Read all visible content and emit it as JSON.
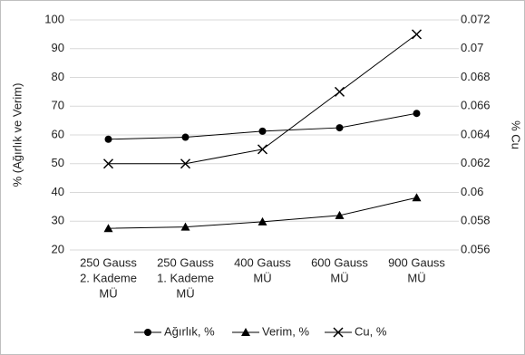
{
  "chart_data": {
    "type": "line",
    "categories": [
      [
        "250 Gauss",
        "2. Kademe",
        "MÜ"
      ],
      [
        "250 Gauss",
        "1. Kademe",
        "MÜ"
      ],
      [
        "400 Gauss",
        "MÜ"
      ],
      [
        "600 Gauss",
        "MÜ"
      ],
      [
        "900 Gauss",
        "MÜ"
      ]
    ],
    "y_label": "% (Ağırlık ve Verim)",
    "y2_label": "% Cu",
    "ylim": [
      20,
      100
    ],
    "yticks": [
      20,
      30,
      40,
      50,
      60,
      70,
      80,
      90,
      100
    ],
    "y2lim": [
      0.056,
      0.072
    ],
    "y2ticks": [
      0.056,
      0.058,
      0.06,
      0.062,
      0.064,
      0.066,
      0.068,
      0.07,
      0.072
    ],
    "grid": true,
    "legend": "bottom",
    "series": [
      {
        "name": "Ağırlık, %",
        "color": "#000000",
        "marker": "circle",
        "values": [
          58.5,
          59.2,
          61.3,
          62.5,
          67.5
        ]
      },
      {
        "name": "Verim, %",
        "color": "#000000",
        "marker": "triangle",
        "values": [
          27.5,
          28,
          29.8,
          32,
          38.2
        ]
      },
      {
        "name": "Cu,  %",
        "color": "#000000",
        "marker": "x",
        "axis": "y2",
        "values": [
          0.062,
          0.062,
          0.063,
          0.067,
          0.071
        ]
      }
    ]
  }
}
